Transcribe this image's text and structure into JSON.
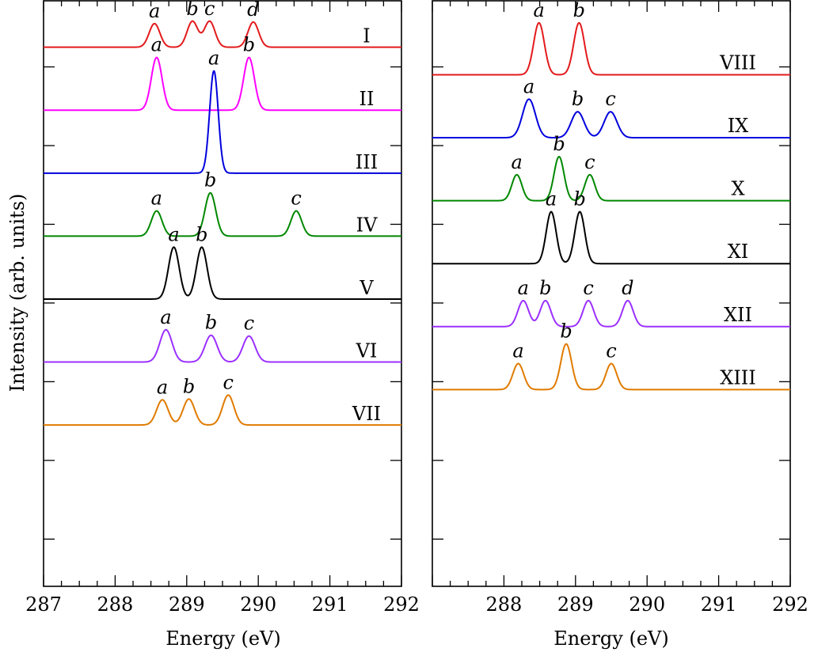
{
  "chart_data": [
    {
      "type": "line",
      "panel": "left",
      "xlabel": "Energy (eV)",
      "ylabel": "Intensity (arb. units)",
      "xlim": [
        287,
        292
      ],
      "x_ticks": [
        287,
        288,
        289,
        290,
        291,
        292
      ],
      "x_tick_labels": [
        "287",
        "288",
        "289",
        "290",
        "291",
        "292"
      ],
      "series": [
        {
          "name": "I",
          "color": "#e31a1c",
          "baseline": 6.85,
          "sigma": 0.075,
          "peaks": [
            {
              "label": "a",
              "x": 288.55,
              "h": 0.3
            },
            {
              "label": "b",
              "x": 289.08,
              "h": 0.33
            },
            {
              "label": "c",
              "x": 289.32,
              "h": 0.33
            },
            {
              "label": "d",
              "x": 289.93,
              "h": 0.32
            }
          ]
        },
        {
          "name": "II",
          "color": "#ff00ff",
          "baseline": 6.05,
          "sigma": 0.075,
          "peaks": [
            {
              "label": "a",
              "x": 288.58,
              "h": 0.67
            },
            {
              "label": "b",
              "x": 289.87,
              "h": 0.67
            }
          ]
        },
        {
          "name": "III",
          "color": "#0000dd",
          "baseline": 5.25,
          "sigma": 0.06,
          "peaks": [
            {
              "label": "a",
              "x": 289.38,
              "h": 1.3
            }
          ]
        },
        {
          "name": "IV",
          "color": "#008800",
          "baseline": 4.45,
          "sigma": 0.075,
          "peaks": [
            {
              "label": "a",
              "x": 288.58,
              "h": 0.32
            },
            {
              "label": "b",
              "x": 289.33,
              "h": 0.55
            },
            {
              "label": "c",
              "x": 290.53,
              "h": 0.32
            }
          ]
        },
        {
          "name": "V",
          "color": "#000000",
          "baseline": 3.65,
          "sigma": 0.075,
          "peaks": [
            {
              "label": "a",
              "x": 288.82,
              "h": 0.66
            },
            {
              "label": "b",
              "x": 289.21,
              "h": 0.66
            }
          ]
        },
        {
          "name": "VI",
          "color": "#9b30ff",
          "baseline": 2.85,
          "sigma": 0.085,
          "peaks": [
            {
              "label": "a",
              "x": 288.71,
              "h": 0.41
            },
            {
              "label": "b",
              "x": 289.34,
              "h": 0.34
            },
            {
              "label": "c",
              "x": 289.87,
              "h": 0.33
            }
          ]
        },
        {
          "name": "VII",
          "color": "#e07b00",
          "baseline": 2.05,
          "sigma": 0.08,
          "peaks": [
            {
              "label": "a",
              "x": 288.66,
              "h": 0.32
            },
            {
              "label": "b",
              "x": 289.03,
              "h": 0.33
            },
            {
              "label": "c",
              "x": 289.58,
              "h": 0.38
            }
          ]
        }
      ]
    },
    {
      "type": "line",
      "panel": "right",
      "xlabel": "Energy (eV)",
      "xlim": [
        287,
        292
      ],
      "x_ticks": [
        288,
        289,
        290,
        291,
        292
      ],
      "x_tick_labels": [
        "288",
        "289",
        "290",
        "291",
        "292"
      ],
      "series": [
        {
          "name": "VIII",
          "color": "#e31a1c",
          "baseline": 6.5,
          "sigma": 0.075,
          "peaks": [
            {
              "label": "a",
              "x": 288.49,
              "h": 0.66
            },
            {
              "label": "b",
              "x": 289.05,
              "h": 0.66
            }
          ]
        },
        {
          "name": "IX",
          "color": "#0000dd",
          "baseline": 5.7,
          "sigma": 0.09,
          "peaks": [
            {
              "label": "a",
              "x": 288.35,
              "h": 0.49
            },
            {
              "label": "b",
              "x": 289.03,
              "h": 0.33
            },
            {
              "label": "c",
              "x": 289.49,
              "h": 0.33
            }
          ]
        },
        {
          "name": "X",
          "color": "#008800",
          "baseline": 4.9,
          "sigma": 0.07,
          "peaks": [
            {
              "label": "a",
              "x": 288.18,
              "h": 0.33
            },
            {
              "label": "b",
              "x": 288.77,
              "h": 0.56
            },
            {
              "label": "c",
              "x": 289.2,
              "h": 0.33
            }
          ]
        },
        {
          "name": "XI",
          "color": "#000000",
          "baseline": 4.1,
          "sigma": 0.07,
          "peaks": [
            {
              "label": "a",
              "x": 288.66,
              "h": 0.66
            },
            {
              "label": "b",
              "x": 289.06,
              "h": 0.66
            }
          ]
        },
        {
          "name": "XII",
          "color": "#9b30ff",
          "baseline": 3.3,
          "sigma": 0.075,
          "peaks": [
            {
              "label": "a",
              "x": 288.27,
              "h": 0.33
            },
            {
              "label": "b",
              "x": 288.58,
              "h": 0.33
            },
            {
              "label": "c",
              "x": 289.18,
              "h": 0.33
            },
            {
              "label": "d",
              "x": 289.73,
              "h": 0.33
            }
          ]
        },
        {
          "name": "XIII",
          "color": "#e07b00",
          "baseline": 2.5,
          "sigma": 0.075,
          "peaks": [
            {
              "label": "a",
              "x": 288.2,
              "h": 0.33
            },
            {
              "label": "b",
              "x": 288.87,
              "h": 0.58
            },
            {
              "label": "c",
              "x": 289.5,
              "h": 0.33
            }
          ]
        }
      ]
    }
  ]
}
